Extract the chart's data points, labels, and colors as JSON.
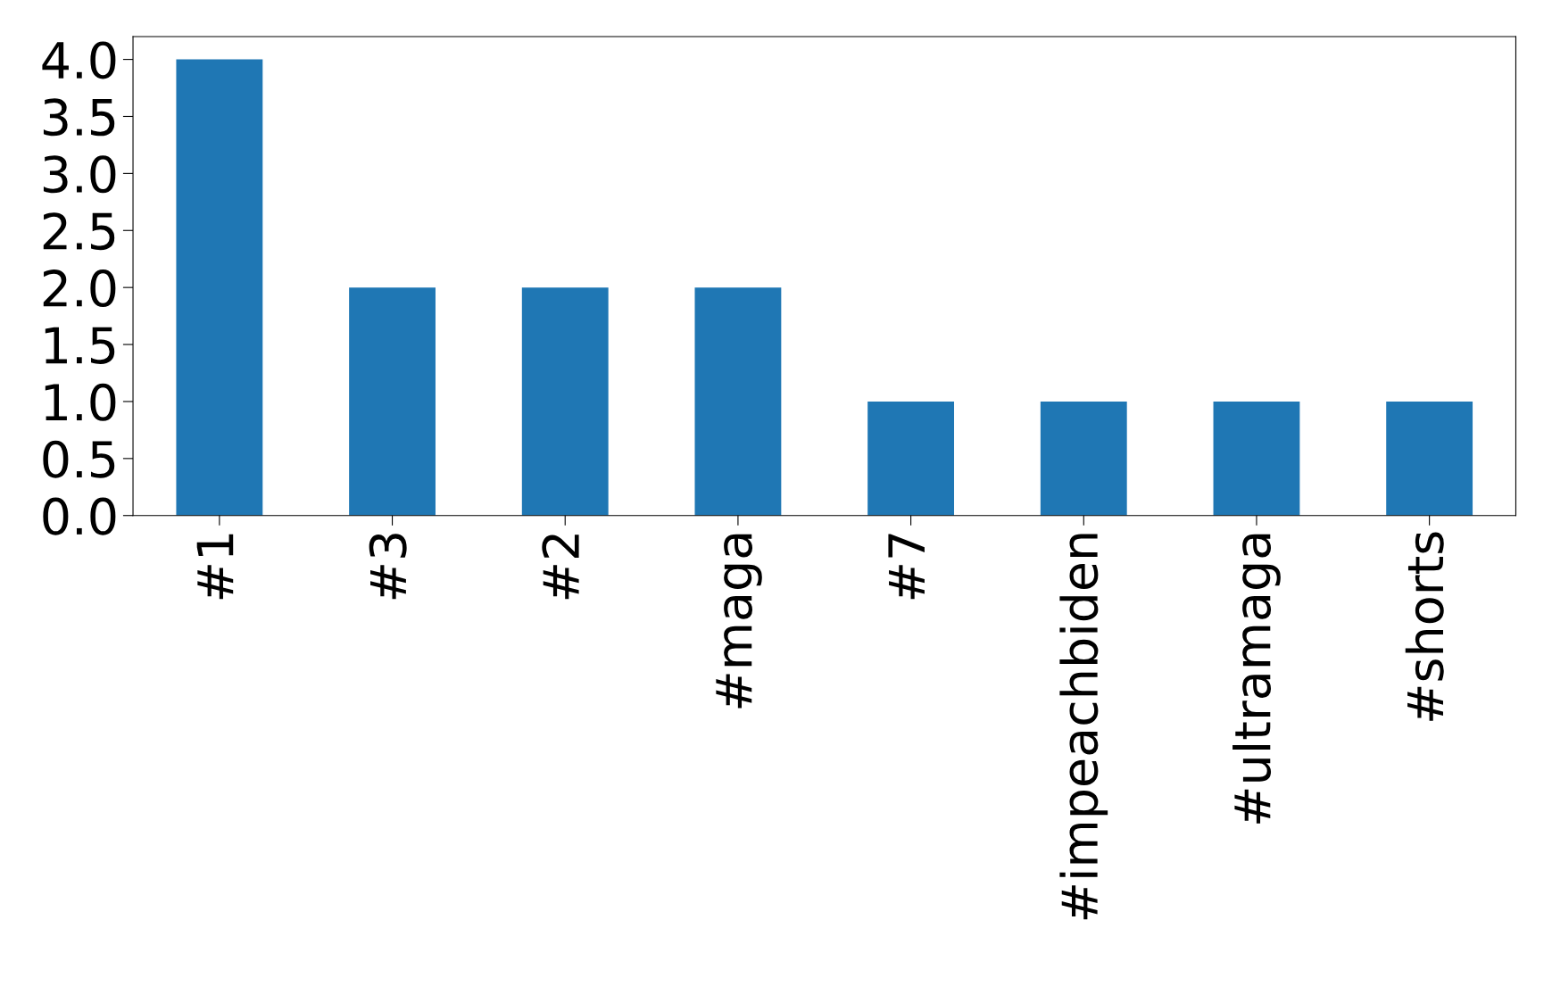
{
  "chart_data": {
    "type": "bar",
    "categories": [
      "#1",
      "#3",
      "#2",
      "#maga",
      "#7",
      "#impeachbiden",
      "#ultramaga",
      "#shorts"
    ],
    "values": [
      4,
      2,
      2,
      2,
      1,
      1,
      1,
      1
    ],
    "color": "#1f77b4",
    "ylim": [
      0,
      4.2
    ],
    "yticks": [
      {
        "value": 0,
        "label": "0.0"
      },
      {
        "value": 0.5,
        "label": "0.5"
      },
      {
        "value": 1,
        "label": "1.0"
      },
      {
        "value": 1.5,
        "label": "1.5"
      },
      {
        "value": 2,
        "label": "2.0"
      },
      {
        "value": 2.5,
        "label": "2.5"
      },
      {
        "value": 3,
        "label": "3.0"
      },
      {
        "value": 3.5,
        "label": "3.5"
      },
      {
        "value": 4,
        "label": "4.0"
      }
    ],
    "grid": false,
    "legend": false
  }
}
